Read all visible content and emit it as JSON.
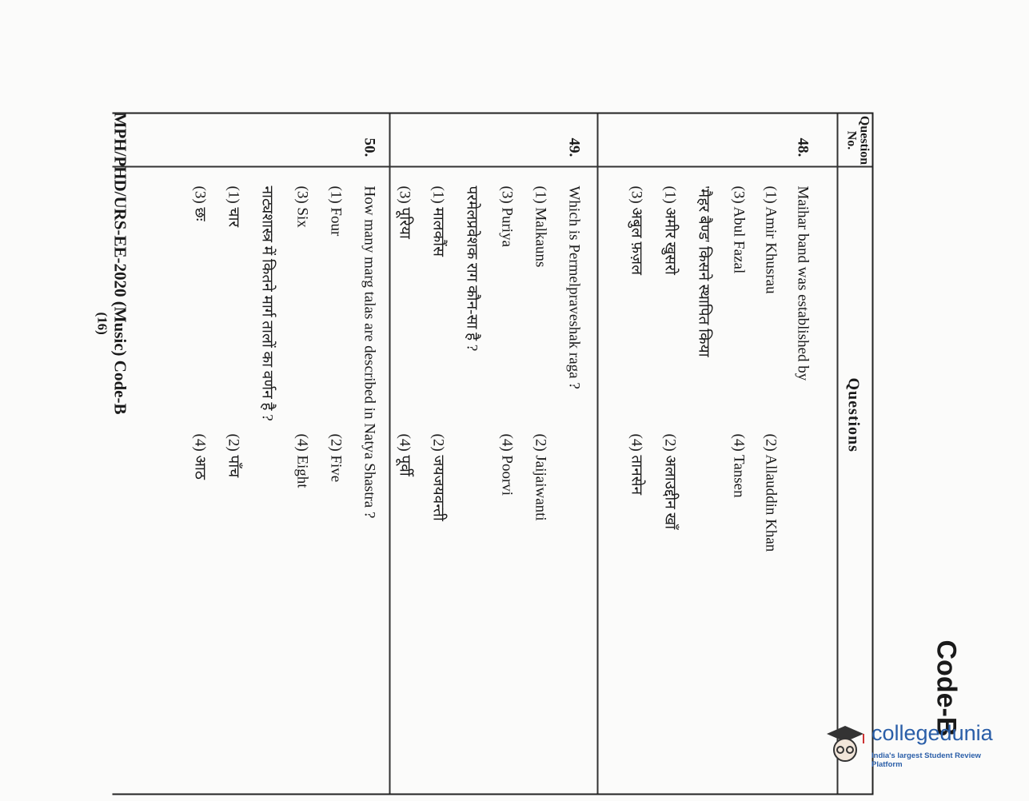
{
  "header": {
    "code": "Code-B",
    "col_qno": "Question No.",
    "col_questions": "Questions"
  },
  "questions": [
    {
      "number": "48.",
      "en": {
        "text": "Maihar band was established by",
        "options": [
          "(1) Amir Khusrau",
          "(2) Allauddin Khan",
          "(3) Abul Fazal",
          "(4) Tansen"
        ]
      },
      "hi": {
        "text": "'मैहर बैण्ड' किसने स्थापित किया",
        "options": [
          "(1) अमीर खुसरो",
          "(2) अलाउद्दीन खाँ",
          "(3) अबुल फ़ज़ल",
          "(4) तानसेन"
        ]
      }
    },
    {
      "number": "49.",
      "en": {
        "text": "Which is Permelpraveshak raga ?",
        "options": [
          "(1) Malkauns",
          "(2) Jaijaiwanti",
          "(3) Puriya",
          "(4) Poorvi"
        ]
      },
      "hi": {
        "text": "परमेलप्रवेशक राग कौन-सा है ?",
        "options": [
          "(1) मालकौंस",
          "(2) जयजयवन्ती",
          "(3) पूरिया",
          "(4) पूर्वी"
        ]
      }
    },
    {
      "number": "50.",
      "en": {
        "text": "How many marg talas are described in Natya Shastra ?",
        "options": [
          "(1) Four",
          "(2) Five",
          "(3) Six",
          "(4) Eight"
        ]
      },
      "hi": {
        "text": "नाट्यशास्त्र में कितने मार्ग तालों का वर्णन है ?",
        "options": [
          "(1) चार",
          "(2) पाँच",
          "(3) छः",
          "(4) आठ"
        ]
      }
    }
  ],
  "footer": {
    "title": "MPH/PHD/URS-EE-2020 (Music) Code-B",
    "page": "(16)"
  },
  "watermark": {
    "brand": "collegedunia",
    "tagline": "India's largest Student Review Platform",
    "color": "#2a5ea8"
  }
}
